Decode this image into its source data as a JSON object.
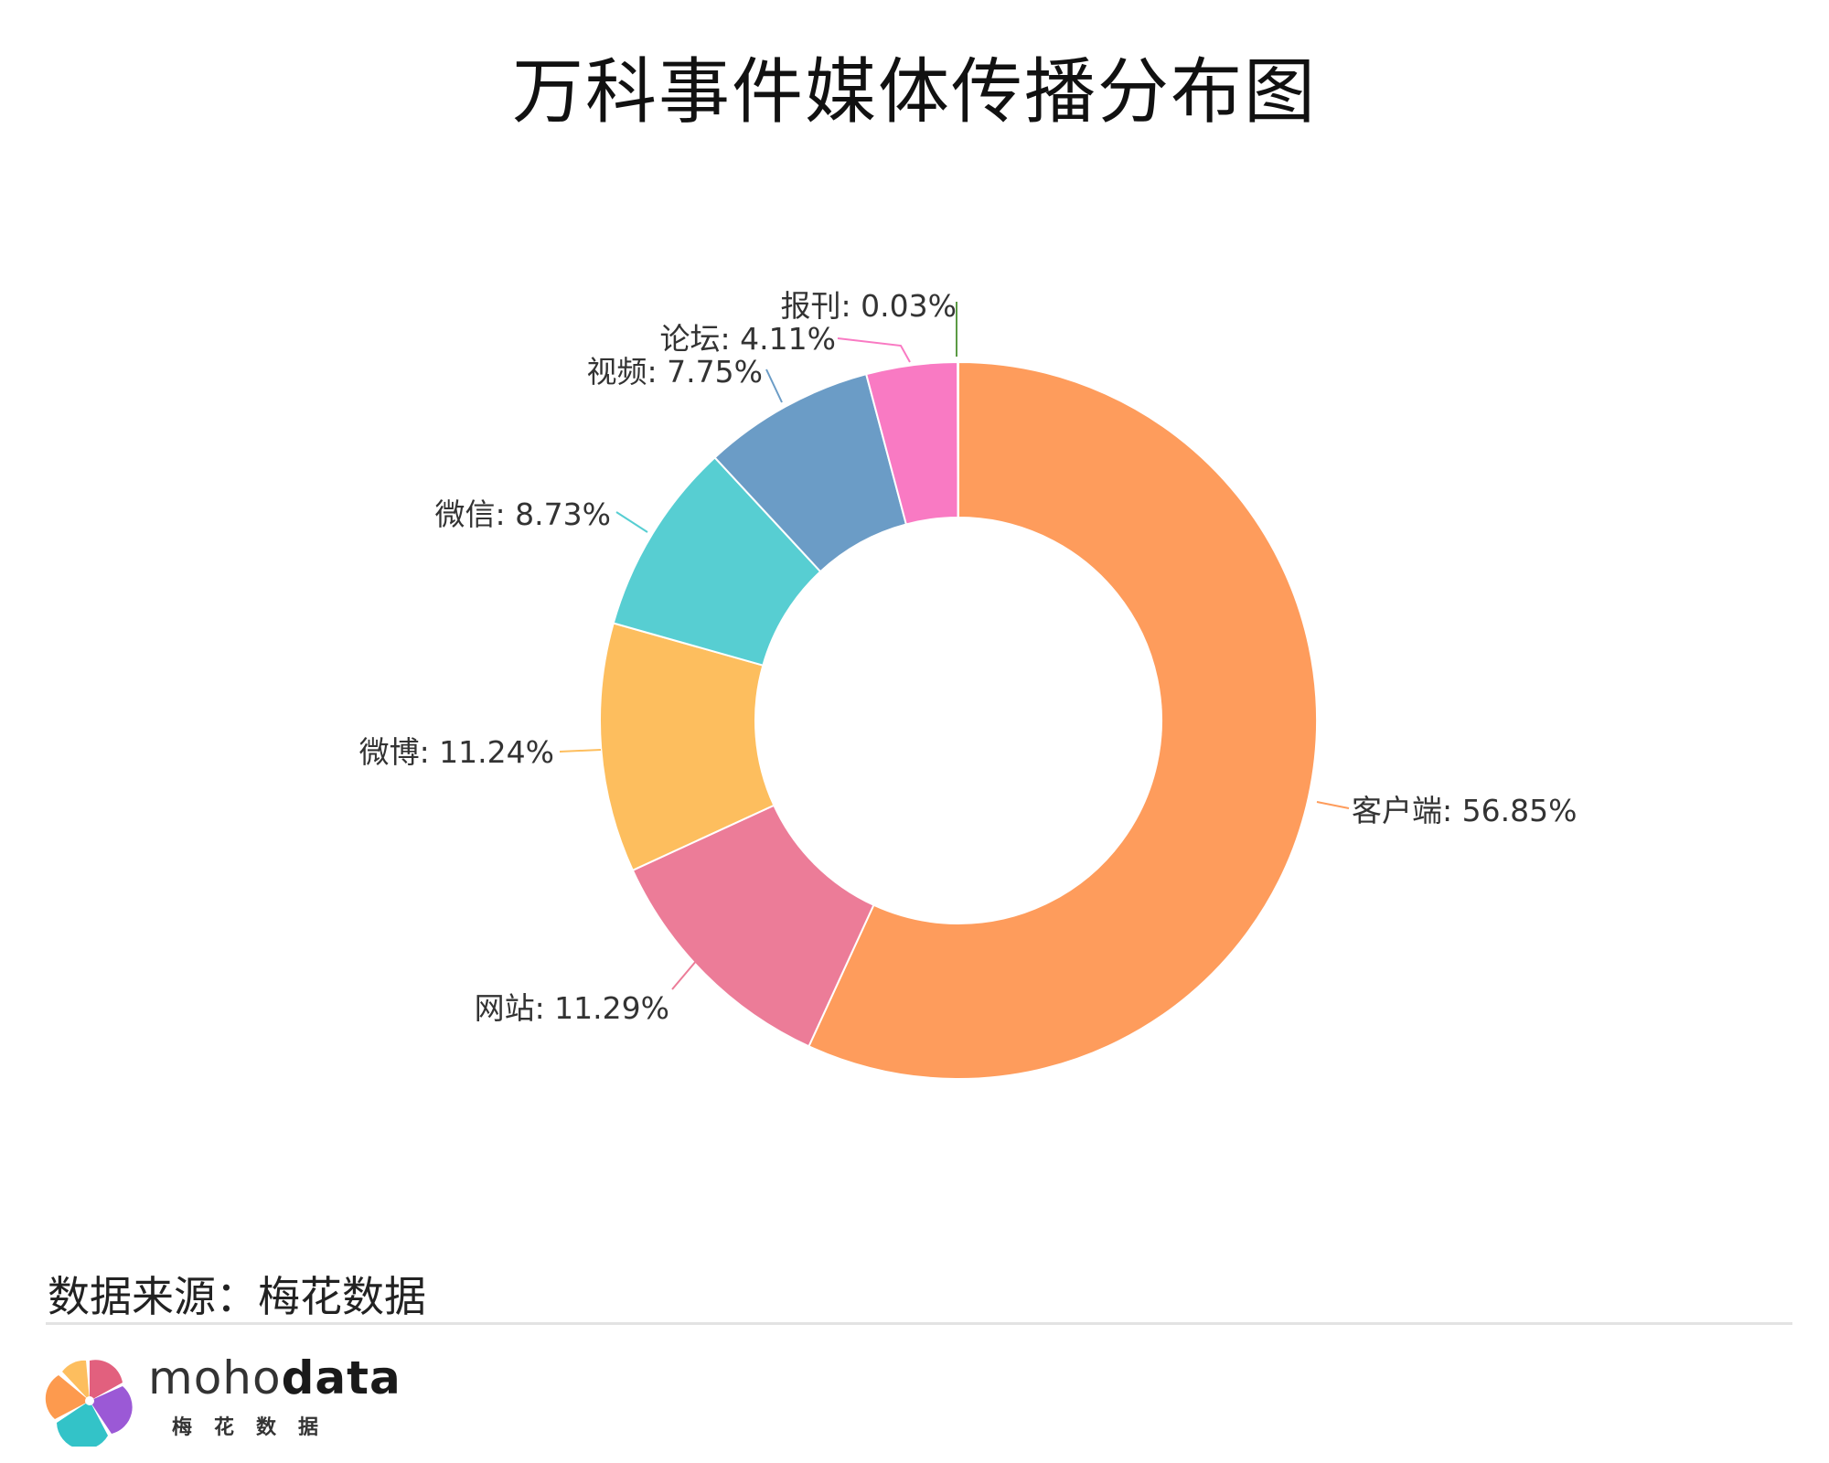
{
  "title": "万科事件媒体传播分布图",
  "source": "数据来源：梅花数据",
  "logo": {
    "word_light": "moho",
    "word_bold": "data",
    "sub": "梅花数据"
  },
  "chart_data": {
    "type": "pie",
    "donut": true,
    "title": "万科事件媒体传播分布图",
    "slices": [
      {
        "name": "客户端",
        "value": 56.85,
        "label": "客户端: 56.85%",
        "color": "#fe9c5c"
      },
      {
        "name": "网站",
        "value": 11.29,
        "label": "网站: 11.29%",
        "color": "#ec7c98"
      },
      {
        "name": "微博",
        "value": 11.24,
        "label": "微博: 11.24%",
        "color": "#fdbe5e"
      },
      {
        "name": "微信",
        "value": 8.73,
        "label": "微信: 8.73%",
        "color": "#57ced2"
      },
      {
        "name": "视频",
        "value": 7.75,
        "label": "视频: 7.75%",
        "color": "#6b9cc6"
      },
      {
        "name": "论坛",
        "value": 4.11,
        "label": "论坛: 4.11%",
        "color": "#f97ac3"
      },
      {
        "name": "报刊",
        "value": 0.03,
        "label": "报刊: 0.03%",
        "color": "#5b9a44"
      }
    ]
  }
}
